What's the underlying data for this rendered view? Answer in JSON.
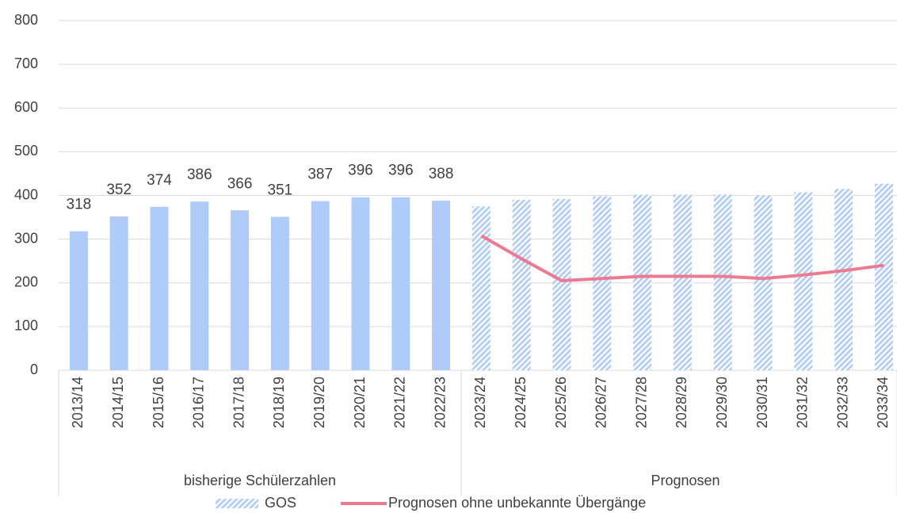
{
  "chart_data": {
    "type": "bar",
    "categories": [
      "2013/14",
      "2014/15",
      "2015/16",
      "2016/17",
      "2017/18",
      "2018/19",
      "2019/20",
      "2020/21",
      "2021/22",
      "2022/23",
      "2023/24",
      "2024/25",
      "2025/26",
      "2026/27",
      "2027/28",
      "2028/29",
      "2029/30",
      "2030/31",
      "2031/32",
      "2032/33",
      "2033/34"
    ],
    "groups": [
      {
        "label": "bisherige Schülerzahlen",
        "count": 10,
        "fill": "solid"
      },
      {
        "label": "Prognosen",
        "count": 11,
        "fill": "hatched"
      }
    ],
    "series": [
      {
        "name": "GOS",
        "type": "bar",
        "color": "#aecbfa",
        "values": [
          318,
          352,
          374,
          386,
          366,
          351,
          387,
          396,
          396,
          388,
          375,
          390,
          392,
          398,
          402,
          402,
          402,
          400,
          407,
          415,
          427
        ],
        "value_labels": [
          "318",
          "352",
          "374",
          "386",
          "366",
          "351",
          "387",
          "396",
          "396",
          "388",
          null,
          null,
          null,
          null,
          null,
          null,
          null,
          null,
          null,
          null,
          null
        ]
      },
      {
        "name": "Prognosen ohne unbekannte Übergänge",
        "type": "line",
        "color": "#ee7a92",
        "values": [
          null,
          null,
          null,
          null,
          null,
          null,
          null,
          null,
          null,
          null,
          308,
          255,
          205,
          210,
          215,
          215,
          215,
          210,
          218,
          228,
          240
        ]
      }
    ],
    "ylim": [
      0,
      800
    ],
    "yticks": [
      0,
      100,
      200,
      300,
      400,
      500,
      600,
      700,
      800
    ],
    "grid": true
  }
}
